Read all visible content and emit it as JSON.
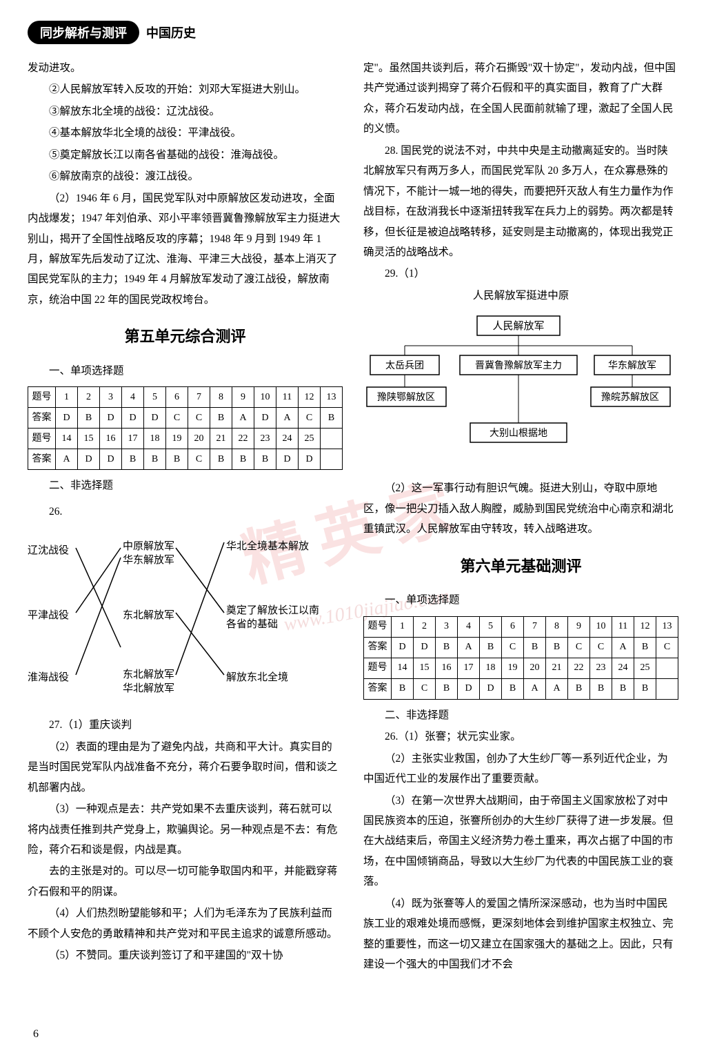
{
  "header": {
    "pill": "同步解析与测评",
    "side": "中国历史"
  },
  "left": {
    "p1": "发动进攻。",
    "p2": "②人民解放军转入反攻的开始：刘邓大军挺进大别山。",
    "p3": "③解放东北全境的战役：辽沈战役。",
    "p4": "④基本解放华北全境的战役：平津战役。",
    "p5": "⑤奠定解放长江以南各省基础的战役：淮海战役。",
    "p6": "⑥解放南京的战役：渡江战役。",
    "p7": "（2）1946 年 6 月，国民党军队对中原解放区发动进攻，全面内战爆发；1947 年刘伯承、邓小平率领晋冀鲁豫解放军主力挺进大别山，揭开了全国性战略反攻的序幕；1948 年 9 月到 1949 年 1 月，解放军先后发动了辽沈、淮海、平津三大战役，基本上消灭了国民党军队的主力；1949 年 4 月解放军发动了渡江战役，解放南京，统治中国 22 年的国民党政权垮台。",
    "unit5_title": "第五单元综合测评",
    "s1": "一、单项选择题",
    "table5_h": "题号",
    "table5_a": "答案",
    "t5_nums1": [
      "1",
      "2",
      "3",
      "4",
      "5",
      "6",
      "7",
      "8",
      "9",
      "10",
      "11",
      "12",
      "13"
    ],
    "t5_ans1": [
      "D",
      "B",
      "D",
      "D",
      "D",
      "C",
      "C",
      "B",
      "A",
      "D",
      "A",
      "C",
      "B"
    ],
    "t5_nums2": [
      "14",
      "15",
      "16",
      "17",
      "18",
      "19",
      "20",
      "21",
      "22",
      "23",
      "24",
      "25",
      ""
    ],
    "t5_ans2": [
      "A",
      "D",
      "D",
      "B",
      "B",
      "B",
      "C",
      "B",
      "B",
      "B",
      "D",
      "D",
      ""
    ],
    "s2": "二、非选择题",
    "s26": "26.",
    "cross": {
      "L1": "辽沈战役",
      "L2": "平津战役",
      "L3": "淮海战役",
      "M1a": "中原解放军",
      "M1b": "华东解放军",
      "M2": "东北解放军",
      "M3a": "东北解放军",
      "M3b": "华北解放军",
      "R1": "华北全境基本解放",
      "R2a": "奠定了解放长江以南",
      "R2b": "各省的基础",
      "R3": "解放东北全境"
    },
    "p27_1": "27.（1）重庆谈判",
    "p27_2": "（2）表面的理由是为了避免内战，共商和平大计。真实目的是当时国民党军队内战准备不充分，蒋介石要争取时间，借和谈之机部署内战。",
    "p27_3": "（3）一种观点是去：共产党如果不去重庆谈判，蒋石就可以将内战责任推到共产党身上，欺骗舆论。另一种观点是不去：有危险，蒋介石和谈是假，内战是真。",
    "p27_4": "去的主张是对的。可以尽一切可能争取国内和平，并能戳穿蒋介石假和平的阴谋。",
    "p27_5": "（4）人们热烈盼望能够和平；人们为毛泽东为了民族利益而不顾个人安危的勇敢精神和共产党对和平民主追求的诚意所感动。",
    "p27_6": "（5）不赞同。重庆谈判签订了和平建国的\"双十协"
  },
  "right": {
    "p1": "定\"。虽然国共谈判后，蒋介石撕毁\"双十协定\"，发动内战，但中国共产党通过谈判揭穿了蒋介石假和平的真实面目，教育了广大群众，蒋介石发动内战，在全国人民面前就输了理，激起了全国人民的义愤。",
    "p28": "28. 国民党的说法不对，中共中央是主动撤离延安的。当时陕北解放军只有两万多人，而国民党军队 20 多万人，在众寡悬殊的情况下，不能计一城一地的得失，而要把歼灭敌人有生力量作为作战目标，在敌消我长中逐渐扭转我军在兵力上的弱势。两次都是转移，但长征是被迫战略转移，延安则是主动撤离的，体现出我党正确灵活的战略战术。",
    "p29": "29.（1）",
    "diagram_title": "人民解放军挺进中原",
    "diag": {
      "top": "人民解放军",
      "l1": "太岳兵团",
      "l2": "晋冀鲁豫解放军主力",
      "l3": "华东解放军",
      "b1": "豫陕鄂解放区",
      "b2": "豫皖苏解放区",
      "bot": "大别山根据地"
    },
    "p29_2": "（2）这一军事行动有胆识气魄。挺进大别山，夺取中原地区，像一把尖刀插入敌人胸膛，威胁到国民党统治中心南京和湖北重镇武汉。人民解放军由守转攻，转入战略进攻。",
    "unit6_title": "第六单元基础测评",
    "s1": "一、单项选择题",
    "t6_nums1": [
      "1",
      "2",
      "3",
      "4",
      "5",
      "6",
      "7",
      "8",
      "9",
      "10",
      "11",
      "12",
      "13"
    ],
    "t6_ans1": [
      "D",
      "D",
      "B",
      "A",
      "B",
      "C",
      "B",
      "B",
      "C",
      "C",
      "A",
      "B",
      "C"
    ],
    "t6_nums2": [
      "14",
      "15",
      "16",
      "17",
      "18",
      "19",
      "20",
      "21",
      "22",
      "23",
      "24",
      "25",
      ""
    ],
    "t6_ans2": [
      "B",
      "C",
      "B",
      "D",
      "D",
      "B",
      "A",
      "A",
      "B",
      "B",
      "B",
      "B",
      ""
    ],
    "s2": "二、非选择题",
    "p26_1": "26.（1）张謇；状元实业家。",
    "p26_2": "（2）主张实业救国，创办了大生纱厂等一系列近代企业，为中国近代工业的发展作出了重要贡献。",
    "p26_3": "（3）在第一次世界大战期间，由于帝国主义国家放松了对中国民族资本的压迫，张謇所创办的大生纱厂获得了进一步发展。但在大战结束后，帝国主义经济势力卷土重来，再次占据了中国的市场，在中国倾销商品，导致以大生纱厂为代表的中国民族工业的衰落。",
    "p26_4": "（4）既为张謇等人的爱国之情所深深感动，也为当时中国民族工业的艰难处境而感慨，更深刻地体会到维护国家主权独立、完整的重要性，而这一切又建立在国家强大的基础之上。因此，只有建设一个强大的中国我们才不会"
  },
  "page_number": "6",
  "colors": {
    "watermark": "#dc3c3c",
    "border": "#000000"
  }
}
